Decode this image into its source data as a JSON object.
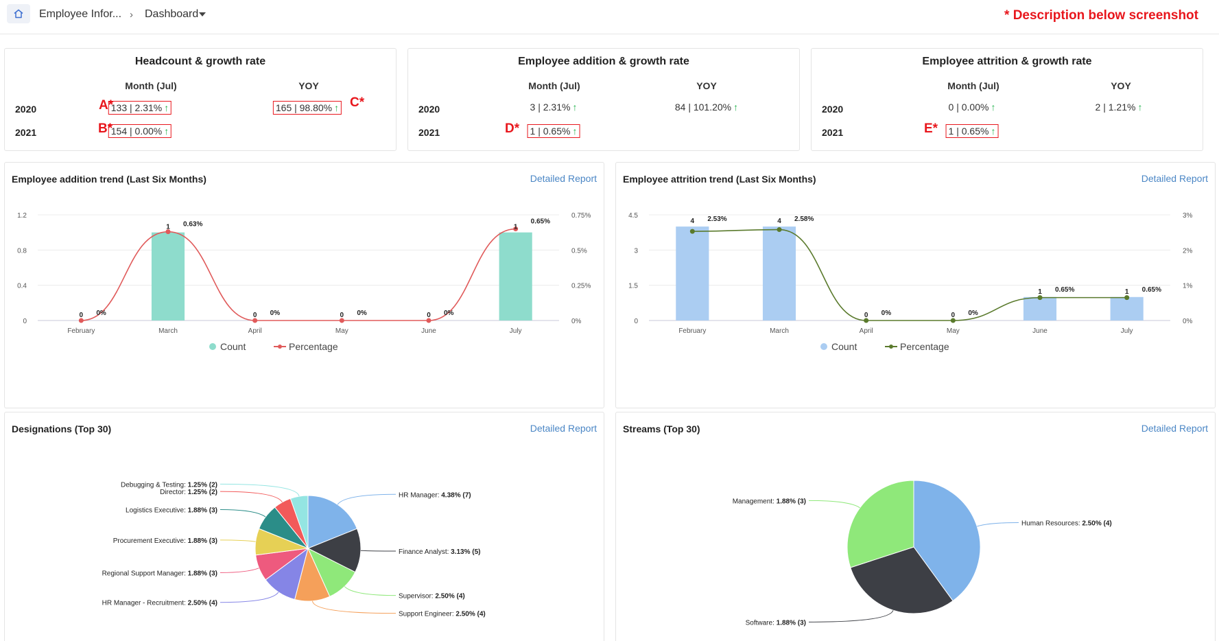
{
  "breadcrumb": {
    "home_icon": "home-icon",
    "module": "Employee Infor...",
    "view": "Dashboard",
    "note": "* Description below screenshot"
  },
  "kpi_cards": [
    {
      "title": "Headcount & growth rate",
      "col_month": "Month (Jul)",
      "col_yoy": "YOY",
      "rows": [
        {
          "year": "2020",
          "month": "133 | 2.31%",
          "yoy": "165 | 98.80%"
        },
        {
          "year": "2021",
          "month": "154 | 0.00%",
          "yoy": ""
        }
      ],
      "markers": {
        "a": "A*",
        "b": "B*",
        "c": "C*"
      }
    },
    {
      "title": "Employee addition & growth rate",
      "col_month": "Month (Jul)",
      "col_yoy": "YOY",
      "rows": [
        {
          "year": "2020",
          "month": "3 | 2.31%",
          "yoy": "84 | 101.20%"
        },
        {
          "year": "2021",
          "month": "1 | 0.65%",
          "yoy": ""
        }
      ],
      "markers": {
        "d": "D*"
      }
    },
    {
      "title": "Employee attrition & growth rate",
      "col_month": "Month (Jul)",
      "col_yoy": "YOY",
      "rows": [
        {
          "year": "2020",
          "month": "0 | 0.00%",
          "yoy": "2 | 1.21%"
        },
        {
          "year": "2021",
          "month": "1 | 0.65%",
          "yoy": ""
        }
      ],
      "markers": {
        "e": "E*"
      }
    }
  ],
  "arrow_up": "↑",
  "addition_panel": {
    "title": "Employee addition trend (Last Six Months)",
    "link": "Detailed Report"
  },
  "attrition_panel": {
    "title": "Employee attrition trend (Last Six Months)",
    "link": "Detailed Report"
  },
  "designations_panel": {
    "title": "Designations (Top 30)",
    "link": "Detailed Report"
  },
  "streams_panel": {
    "title": "Streams (Top 30)",
    "link": "Detailed Report"
  },
  "colors": {
    "addition_bar": "#8edccc",
    "addition_line": "#e05a5a",
    "attrition_bar": "#abcdf2",
    "attrition_line": "#5a7a2c",
    "link": "#4a86c5",
    "alert": "#e8161c",
    "up_arrow": "#22b24c"
  },
  "chart_data": [
    {
      "type": "bar",
      "categories": [
        "February",
        "March",
        "April",
        "May",
        "June",
        "July"
      ],
      "series": [
        {
          "name": "Count",
          "values": [
            0,
            1,
            0,
            0,
            0,
            1
          ],
          "labels": [
            "0",
            "1",
            "0",
            "0",
            "0",
            "1"
          ]
        },
        {
          "name": "Percentage",
          "type": "line",
          "values": [
            0,
            0.63,
            0,
            0,
            0,
            0.65
          ],
          "labels": [
            "0%",
            "0.63%",
            "0%",
            "0%",
            "0%",
            "0.65%"
          ]
        }
      ],
      "ylim": [
        0,
        1.2
      ],
      "yticks": [
        "0",
        "0.4",
        "0.8",
        "1.2"
      ],
      "y2lim": [
        0,
        0.75
      ],
      "y2ticks": [
        "0%",
        "0.25%",
        "0.5%",
        "0.75%"
      ],
      "legend": "bottom"
    },
    {
      "type": "bar",
      "categories": [
        "February",
        "March",
        "April",
        "May",
        "June",
        "July"
      ],
      "series": [
        {
          "name": "Count",
          "values": [
            4,
            4,
            0,
            0,
            1,
            1
          ],
          "labels": [
            "4",
            "4",
            "0",
            "0",
            "1",
            "1"
          ]
        },
        {
          "name": "Percentage",
          "type": "line",
          "values": [
            2.53,
            2.58,
            0,
            0,
            0.65,
            0.65
          ],
          "labels": [
            "2.53%",
            "2.58%",
            "0%",
            "0%",
            "0.65%",
            "0.65%"
          ]
        }
      ],
      "ylim": [
        0,
        4.5
      ],
      "yticks": [
        "0",
        "1.5",
        "3",
        "4.5"
      ],
      "y2lim": [
        0,
        3
      ],
      "y2ticks": [
        "0%",
        "1%",
        "2%",
        "3%"
      ],
      "legend": "bottom"
    },
    {
      "type": "pie",
      "slices": [
        {
          "label": "HR Manager:",
          "value": "4.38% (7)",
          "weight": 7,
          "color": "#7fb3ea"
        },
        {
          "label": "Finance Analyst:",
          "value": "3.13% (5)",
          "weight": 5,
          "color": "#3d3f45"
        },
        {
          "label": "Supervisor:",
          "value": "2.50% (4)",
          "weight": 4,
          "color": "#8fe87a"
        },
        {
          "label": "Support Engineer:",
          "value": "2.50% (4)",
          "weight": 4,
          "color": "#f5a05a"
        },
        {
          "label": "HR Manager - Recruitment:",
          "value": "2.50% (4)",
          "weight": 4,
          "color": "#8585e6"
        },
        {
          "label": "Regional Support Manager:",
          "value": "1.88% (3)",
          "weight": 3,
          "color": "#ee5a7e"
        },
        {
          "label": "Procurement Executive:",
          "value": "1.88% (3)",
          "weight": 3,
          "color": "#e6d055"
        },
        {
          "label": "Logistics Executive:",
          "value": "1.88% (3)",
          "weight": 3,
          "color": "#2b8d88"
        },
        {
          "label": "Director:",
          "value": "1.25% (2)",
          "weight": 2,
          "color": "#f25a5a"
        },
        {
          "label": "Debugging & Testing:",
          "value": "1.25% (2)",
          "weight": 2,
          "color": "#94e5e2"
        }
      ]
    },
    {
      "type": "pie",
      "slices": [
        {
          "label": "Human Resources:",
          "value": "2.50% (4)",
          "weight": 4,
          "color": "#7fb3ea"
        },
        {
          "label": "Software:",
          "value": "1.88% (3)",
          "weight": 3,
          "color": "#3d3f45"
        },
        {
          "label": "Management:",
          "value": "1.88% (3)",
          "weight": 3,
          "color": "#8fe87a"
        }
      ]
    }
  ]
}
